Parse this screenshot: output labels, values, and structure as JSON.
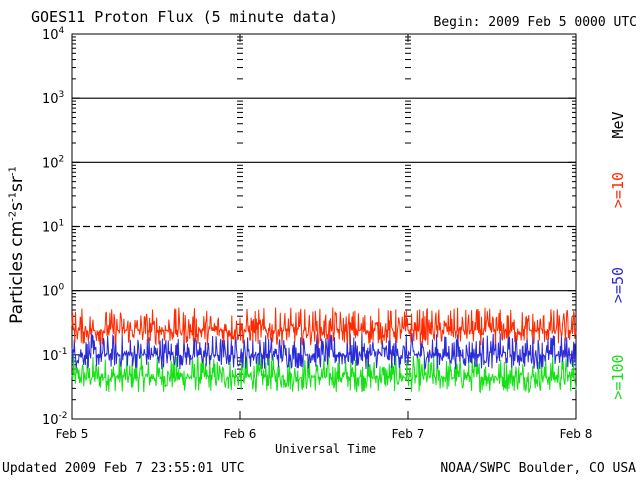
{
  "header": {
    "title": "GOES11 Proton Flux (5 minute data)",
    "begin": "Begin: 2009 Feb 5 0000 UTC"
  },
  "footer": {
    "updated": "Updated 2009 Feb  7 23:55:01 UTC",
    "credit": "NOAA/SWPC Boulder, CO USA"
  },
  "legend": {
    "unit": "MeV",
    "items": [
      {
        "label": ">=10",
        "color": "#ff2a00"
      },
      {
        "label": ">=50",
        "color": "#2a2ad8"
      },
      {
        "label": ">=100",
        "color": "#15e015"
      }
    ]
  },
  "chart_data": {
    "type": "line",
    "title": "GOES11 Proton Flux (5 minute data)",
    "xlabel": "Universal Time",
    "ylabel": "Particles cm⁻²s⁻¹sr⁻¹",
    "y_scale": "log",
    "ylim": [
      0.01,
      10000
    ],
    "y_ticks": [
      {
        "value": 0.01,
        "base": "10",
        "exp": "-2"
      },
      {
        "value": 0.1,
        "base": "10",
        "exp": "-1"
      },
      {
        "value": 1,
        "base": "10",
        "exp": "0"
      },
      {
        "value": 10,
        "base": "10",
        "exp": "1"
      },
      {
        "value": 100,
        "base": "10",
        "exp": "2"
      },
      {
        "value": 1000,
        "base": "10",
        "exp": "3"
      },
      {
        "value": 10000,
        "base": "10",
        "exp": "4"
      }
    ],
    "x_ticks": [
      "Feb 5",
      "Feb 6",
      "Feb 7",
      "Feb 8"
    ],
    "xlim": [
      0,
      3
    ],
    "x_unit": "days",
    "threshold_lines": [
      {
        "value": 1,
        "style": "solid"
      },
      {
        "value": 10,
        "style": "dashed"
      },
      {
        "value": 100,
        "style": "solid"
      },
      {
        "value": 1000,
        "style": "solid"
      }
    ],
    "series": [
      {
        "name": ">=10 MeV",
        "color": "#ff2a00",
        "typical": 0.24,
        "min": 0.14,
        "max": 0.55
      },
      {
        "name": ">=50 MeV",
        "color": "#2a2ad8",
        "typical": 0.1,
        "min": 0.06,
        "max": 0.22
      },
      {
        "name": ">=100 MeV",
        "color": "#15e015",
        "typical": 0.045,
        "min": 0.026,
        "max": 0.1
      }
    ]
  }
}
